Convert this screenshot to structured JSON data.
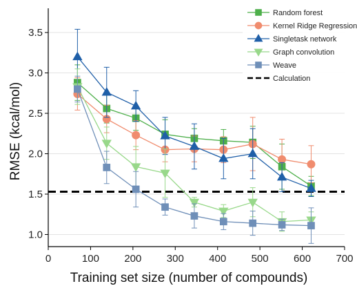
{
  "chart_data": {
    "type": "line",
    "xlabel": "Training set size (number of compounds)",
    "ylabel": "RMSE (kcal/mol)",
    "xlim": [
      0,
      700
    ],
    "ylim": [
      0.85,
      3.8
    ],
    "x_ticks": [
      0,
      100,
      200,
      300,
      400,
      500,
      600,
      700
    ],
    "y_ticks": [
      1.0,
      1.5,
      2.0,
      2.5,
      3.0,
      3.5
    ],
    "grid": "horizontal",
    "legend_position": "top-right",
    "series": [
      {
        "name": "Random forest",
        "color": "#4daf4a",
        "marker": "square",
        "x": [
          69,
          138,
          207,
          276,
          345,
          414,
          483,
          552,
          621
        ],
        "y": [
          2.88,
          2.56,
          2.44,
          2.24,
          2.19,
          2.16,
          2.14,
          1.84,
          1.6
        ],
        "err": [
          0.22,
          0.18,
          0.15,
          0.18,
          0.12,
          0.14,
          0.2,
          0.28,
          0.12
        ]
      },
      {
        "name": "Kernel Ridge Regression",
        "color": "#f08c6e",
        "marker": "circle",
        "x": [
          69,
          138,
          207,
          276,
          345,
          414,
          483,
          552,
          621
        ],
        "y": [
          2.74,
          2.43,
          2.23,
          2.05,
          2.06,
          2.05,
          2.12,
          1.93,
          1.87
        ],
        "err": [
          0.2,
          0.17,
          0.18,
          0.15,
          0.16,
          0.16,
          0.33,
          0.25,
          0.23
        ]
      },
      {
        "name": "Singletask network",
        "color": "#1f5fa8",
        "marker": "triangle-up",
        "x": [
          69,
          138,
          207,
          276,
          345,
          414,
          483,
          552,
          621
        ],
        "y": [
          3.2,
          2.76,
          2.59,
          2.22,
          2.09,
          1.94,
          2.0,
          1.71,
          1.57
        ],
        "err": [
          0.34,
          0.31,
          0.19,
          0.23,
          0.28,
          0.25,
          0.31,
          0.18,
          0.1
        ]
      },
      {
        "name": "Graph convolution",
        "color": "#98d88a",
        "marker": "triangle-down",
        "x": [
          69,
          138,
          207,
          276,
          345,
          414,
          483,
          552,
          621
        ],
        "y": [
          2.83,
          2.13,
          1.84,
          1.76,
          1.4,
          1.29,
          1.4,
          1.16,
          1.18
        ],
        "err": [
          0.22,
          0.2,
          0.25,
          0.3,
          0.06,
          0.08,
          0.18,
          0.12,
          0.1
        ]
      },
      {
        "name": "Weave",
        "color": "#6f8fb8",
        "marker": "square",
        "x": [
          69,
          138,
          207,
          276,
          345,
          414,
          483,
          552,
          621
        ],
        "y": [
          2.8,
          1.83,
          1.56,
          1.34,
          1.23,
          1.16,
          1.14,
          1.12,
          1.11
        ],
        "err": [
          0.16,
          0.2,
          0.22,
          0.1,
          0.15,
          0.1,
          0.15,
          0.07,
          0.22
        ]
      }
    ],
    "reference_line": {
      "name": "Calculation",
      "y": 1.53,
      "style": "dashed",
      "color": "#000000"
    }
  }
}
